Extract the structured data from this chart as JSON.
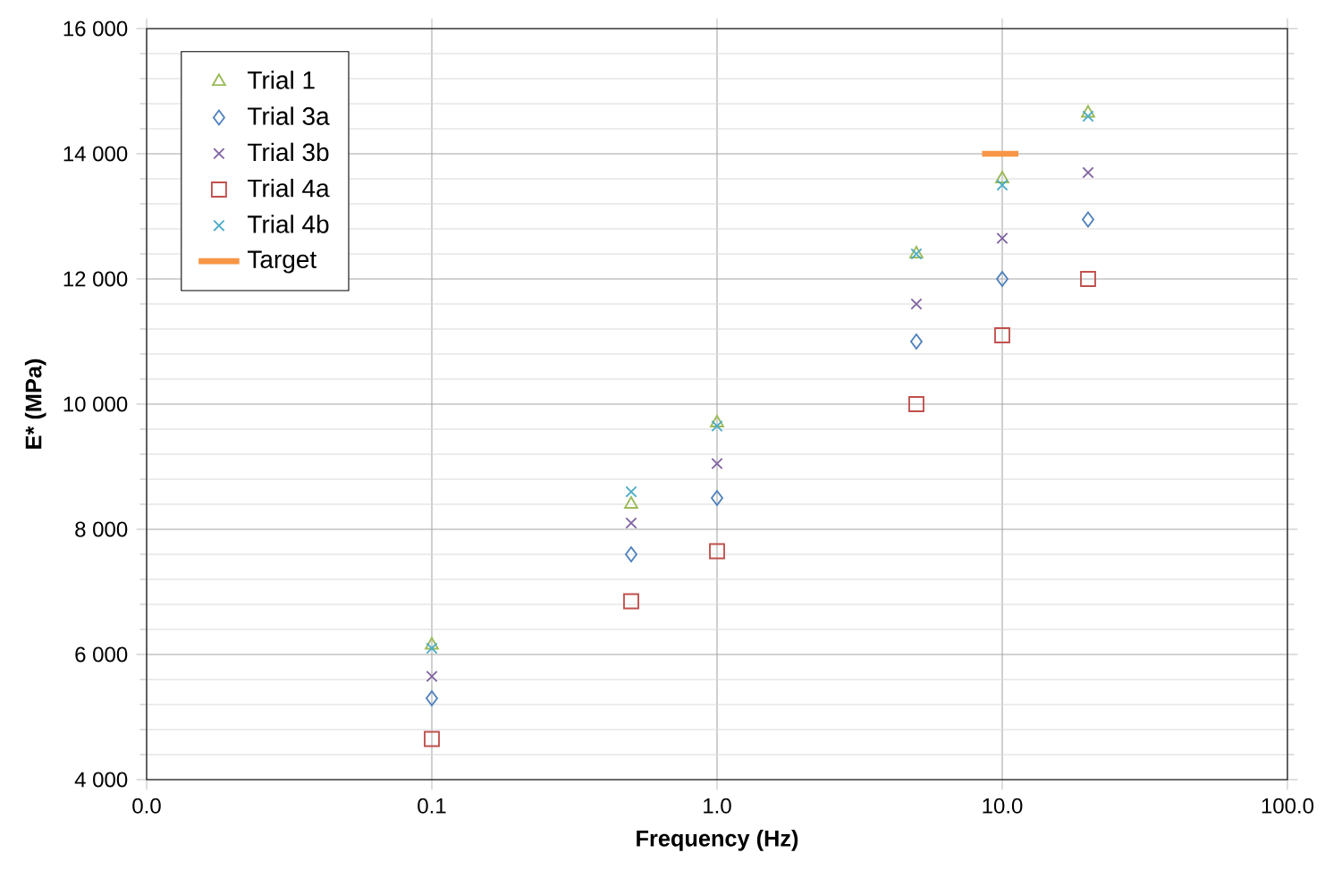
{
  "chart_data": {
    "type": "scatter",
    "xlabel": "Frequency (Hz)",
    "ylabel": "E* (MPa)",
    "log": "x",
    "xlim": [
      0.01,
      100
    ],
    "ylim": [
      4000,
      16000
    ],
    "xticks": [
      {
        "value": 0.01,
        "label": "0.0"
      },
      {
        "value": 0.1,
        "label": "0.1"
      },
      {
        "value": 1,
        "label": "1.0"
      },
      {
        "value": 10,
        "label": "10.0"
      },
      {
        "value": 100,
        "label": "100.0"
      }
    ],
    "yticks": [
      {
        "value": 4000,
        "label": "4 000"
      },
      {
        "value": 6000,
        "label": "6 000"
      },
      {
        "value": 8000,
        "label": "8 000"
      },
      {
        "value": 10000,
        "label": "10 000"
      },
      {
        "value": 12000,
        "label": "12 000"
      },
      {
        "value": 14000,
        "label": "14 000"
      },
      {
        "value": 16000,
        "label": "16 000"
      }
    ],
    "grid": true,
    "legend": "top left",
    "x": [
      0.1,
      0.5,
      1,
      5,
      10,
      20
    ],
    "series": [
      {
        "name": "Trial 1",
        "color": "#9bbb59",
        "marker": "triangle",
        "values": [
          6150,
          8400,
          9700,
          12400,
          13600,
          14650
        ]
      },
      {
        "name": "Trial 3a",
        "color": "#4f81bd",
        "marker": "diamond",
        "values": [
          5300,
          7600,
          8500,
          11000,
          12000,
          12950
        ]
      },
      {
        "name": "Trial 3b",
        "color": "#8064a2",
        "marker": "cross",
        "values": [
          5650,
          8100,
          9050,
          11600,
          12650,
          13700
        ]
      },
      {
        "name": "Trial 4a",
        "color": "#c0504d",
        "marker": "square",
        "values": [
          4650,
          6850,
          7650,
          10000,
          11100,
          12000
        ]
      },
      {
        "name": "Trial 4b",
        "color": "#4bacc6",
        "marker": "cross",
        "values": [
          6100,
          8600,
          9650,
          12400,
          13500,
          14600
        ]
      },
      {
        "name": "Target",
        "type": "line",
        "color": "#f79646",
        "marker": "none",
        "x": [
          8.5,
          11.4
        ],
        "values": [
          14000,
          14000
        ]
      }
    ]
  }
}
